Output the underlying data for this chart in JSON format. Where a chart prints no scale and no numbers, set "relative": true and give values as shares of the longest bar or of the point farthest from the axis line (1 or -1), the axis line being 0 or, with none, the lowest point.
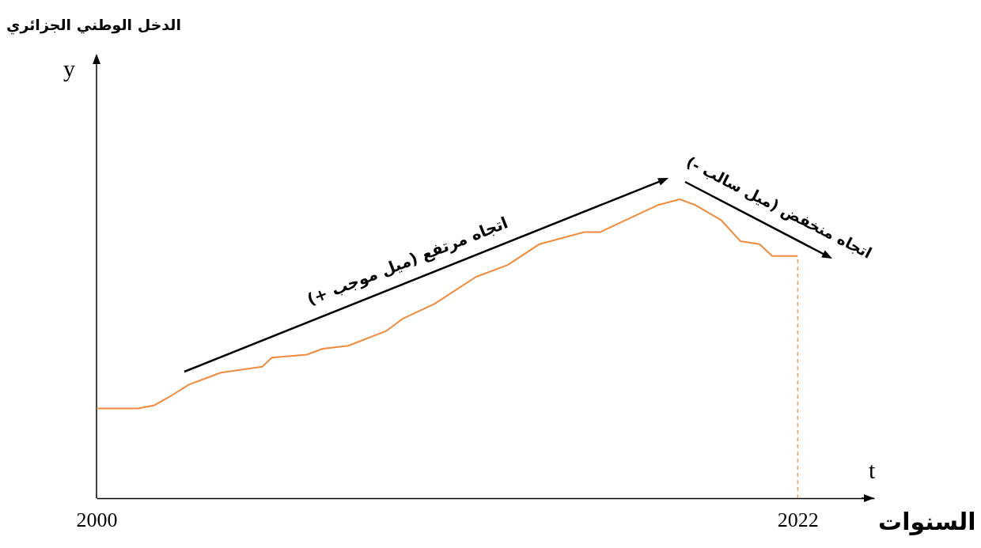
{
  "chart_data": {
    "type": "line",
    "relative": true,
    "ylabel": "y",
    "xlabel": "السنوات",
    "x": [
      2000,
      2001.3,
      2001.8,
      2002.3,
      2002.9,
      2003.9,
      2005.2,
      2005.5,
      2006.6,
      2007.1,
      2007.9,
      2009.1,
      2009.6,
      2010.6,
      2011.9,
      2012.9,
      2013.9,
      2015.3,
      2015.8,
      2016.6,
      2017.6,
      2018.3,
      2018.8,
      2019.6,
      2020.2,
      2020.8,
      2021.2,
      2022
    ],
    "series": [
      {
        "color": "#f08a3c",
        "values": [
          0.3,
          0.3,
          0.31,
          0.34,
          0.38,
          0.42,
          0.44,
          0.47,
          0.48,
          0.5,
          0.51,
          0.56,
          0.6,
          0.65,
          0.74,
          0.78,
          0.85,
          0.89,
          0.89,
          0.93,
          0.98,
          1.0,
          0.98,
          0.93,
          0.86,
          0.85,
          0.81,
          0.81
        ]
      }
    ],
    "xlim": [
      2000,
      2024.4
    ],
    "xticks": [
      2000,
      2022
    ],
    "ref_lines": [
      {
        "axis": "x",
        "value": 2022,
        "color": "#f08a3c",
        "line_style": "dashed"
      }
    ],
    "annotations": [
      "الدخل الوطني الجزائري",
      "t",
      "اتجاه مرتفع (ميل موجب +)",
      "اتجاه منخفض (ميل سالب -)"
    ]
  }
}
